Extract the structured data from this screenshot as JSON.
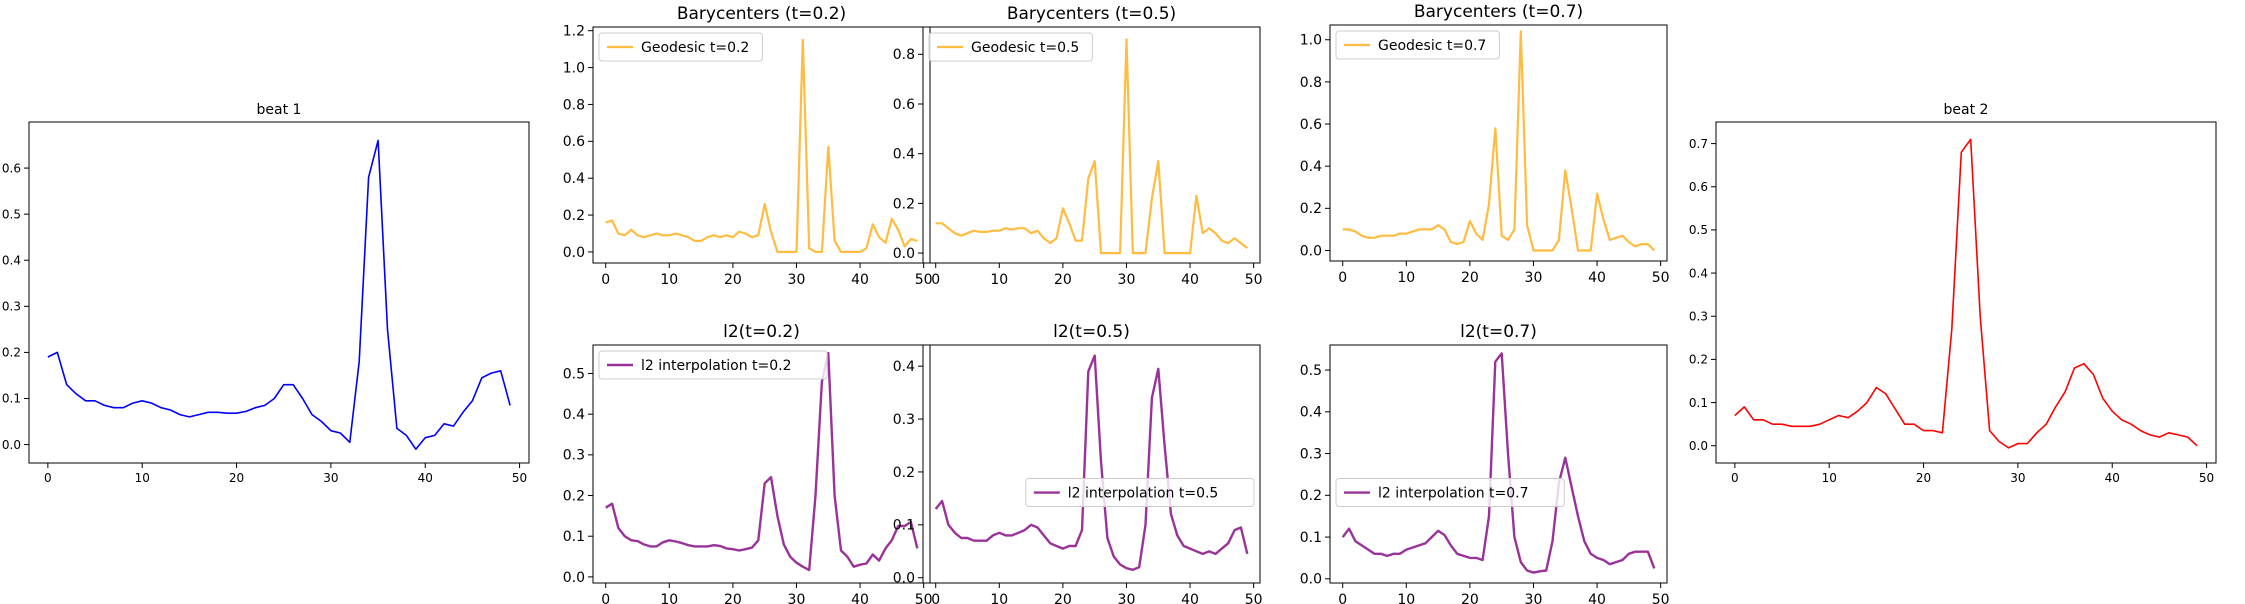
{
  "chart_data": [
    {
      "id": "beat1",
      "type": "line",
      "title": "beat 1",
      "xlabel": "",
      "ylabel": "",
      "xlim": [
        -2,
        51
      ],
      "ylim": [
        -0.04,
        0.7
      ],
      "xticks": [
        0,
        10,
        20,
        30,
        40,
        50
      ],
      "yticks": [
        0.0,
        0.1,
        0.2,
        0.3,
        0.4,
        0.5,
        0.6
      ],
      "tick_labels_y": [
        "0.0",
        "0.1",
        "0.2",
        "0.3",
        "0.4",
        "0.5",
        "0.6"
      ],
      "legend": null,
      "series": [
        {
          "name": "beat 1",
          "color": "#0000ff",
          "values": [
            0.19,
            0.2,
            0.13,
            0.11,
            0.095,
            0.095,
            0.085,
            0.08,
            0.08,
            0.09,
            0.095,
            0.09,
            0.08,
            0.075,
            0.065,
            0.06,
            0.065,
            0.07,
            0.07,
            0.068,
            0.068,
            0.072,
            0.08,
            0.085,
            0.1,
            0.13,
            0.13,
            0.1,
            0.065,
            0.05,
            0.03,
            0.025,
            0.005,
            0.18,
            0.58,
            0.66,
            0.25,
            0.035,
            0.02,
            -0.01,
            0.015,
            0.02,
            0.045,
            0.04,
            0.07,
            0.095,
            0.145,
            0.155,
            0.16,
            0.085
          ]
        }
      ]
    },
    {
      "id": "bary02",
      "type": "line",
      "title": "Barycenters (t=0.2)",
      "xlim": [
        -2,
        51
      ],
      "ylim": [
        -0.06,
        1.22
      ],
      "xticks": [
        0,
        10,
        20,
        30,
        40,
        50
      ],
      "yticks": [
        0.0,
        0.2,
        0.4,
        0.6,
        0.8,
        1.0,
        1.2
      ],
      "tick_labels_y": [
        "0.0",
        "0.2",
        "0.4",
        "0.6",
        "0.8",
        "1.0",
        "1.2"
      ],
      "legend": "top-left",
      "series": [
        {
          "name": "Geodesic t=0.2",
          "color": "#ffa500",
          "values": [
            0.16,
            0.17,
            0.1,
            0.09,
            0.12,
            0.09,
            0.08,
            0.09,
            0.1,
            0.09,
            0.09,
            0.1,
            0.09,
            0.08,
            0.06,
            0.06,
            0.08,
            0.09,
            0.08,
            0.09,
            0.08,
            0.11,
            0.1,
            0.08,
            0.09,
            0.26,
            0.11,
            0.0,
            0.0,
            0.0,
            0.0,
            1.15,
            0.02,
            0.0,
            0.0,
            0.57,
            0.06,
            0.0,
            0.0,
            0.0,
            0.0,
            0.02,
            0.15,
            0.08,
            0.05,
            0.18,
            0.12,
            0.03,
            0.07,
            0.06
          ]
        }
      ]
    },
    {
      "id": "bary05",
      "type": "line",
      "title": "Barycenters (t=0.5)",
      "xlim": [
        -2,
        51
      ],
      "ylim": [
        -0.04,
        0.91
      ],
      "xticks": [
        0,
        10,
        20,
        30,
        40,
        50
      ],
      "yticks": [
        0.0,
        0.2,
        0.4,
        0.6,
        0.8
      ],
      "tick_labels_y": [
        "0.0",
        "0.2",
        "0.4",
        "0.6",
        "0.8"
      ],
      "legend": "top-left",
      "series": [
        {
          "name": "Geodesic t=0.5",
          "color": "#ffa500",
          "values": [
            0.12,
            0.12,
            0.1,
            0.08,
            0.07,
            0.08,
            0.09,
            0.085,
            0.085,
            0.09,
            0.09,
            0.1,
            0.095,
            0.1,
            0.1,
            0.08,
            0.09,
            0.06,
            0.04,
            0.06,
            0.18,
            0.12,
            0.05,
            0.05,
            0.3,
            0.37,
            0.0,
            0.0,
            0.0,
            0.0,
            0.86,
            0.0,
            0.0,
            0.0,
            0.22,
            0.37,
            0.0,
            0.0,
            0.0,
            0.0,
            0.0,
            0.23,
            0.08,
            0.1,
            0.08,
            0.05,
            0.04,
            0.06,
            0.04,
            0.02
          ]
        }
      ]
    },
    {
      "id": "bary07",
      "type": "line",
      "title": "Barycenters (t=0.7)",
      "xlim": [
        -2,
        51
      ],
      "ylim": [
        -0.05,
        1.07
      ],
      "xticks": [
        0,
        10,
        20,
        30,
        40,
        50
      ],
      "yticks": [
        0.0,
        0.2,
        0.4,
        0.6,
        0.8,
        1.0
      ],
      "tick_labels_y": [
        "0.0",
        "0.2",
        "0.4",
        "0.6",
        "0.8",
        "1.0"
      ],
      "legend": "top-left",
      "series": [
        {
          "name": "Geodesic t=0.7",
          "color": "#ffa500",
          "values": [
            0.1,
            0.1,
            0.09,
            0.07,
            0.06,
            0.06,
            0.07,
            0.07,
            0.07,
            0.08,
            0.08,
            0.09,
            0.1,
            0.1,
            0.1,
            0.12,
            0.1,
            0.04,
            0.03,
            0.04,
            0.14,
            0.08,
            0.05,
            0.22,
            0.58,
            0.07,
            0.05,
            0.1,
            1.04,
            0.12,
            0.0,
            0.0,
            0.0,
            0.0,
            0.05,
            0.38,
            0.2,
            0.0,
            0.0,
            0.0,
            0.27,
            0.15,
            0.05,
            0.06,
            0.07,
            0.04,
            0.02,
            0.03,
            0.03,
            0.0
          ]
        }
      ]
    },
    {
      "id": "l2_02",
      "type": "line",
      "title": "l2(t=0.2)",
      "xlim": [
        -2,
        51
      ],
      "ylim": [
        -0.015,
        0.57
      ],
      "xticks": [
        0,
        10,
        20,
        30,
        40,
        50
      ],
      "yticks": [
        0.0,
        0.1,
        0.2,
        0.3,
        0.4,
        0.5
      ],
      "tick_labels_y": [
        "0.0",
        "0.1",
        "0.2",
        "0.3",
        "0.4",
        "0.5"
      ],
      "legend": "top-left",
      "series": [
        {
          "name": "l2 interpolation t=0.2",
          "color": "#800080",
          "values": [
            0.17,
            0.18,
            0.12,
            0.1,
            0.09,
            0.088,
            0.08,
            0.075,
            0.075,
            0.085,
            0.09,
            0.087,
            0.083,
            0.078,
            0.075,
            0.075,
            0.075,
            0.078,
            0.076,
            0.07,
            0.068,
            0.065,
            0.068,
            0.072,
            0.09,
            0.23,
            0.245,
            0.15,
            0.08,
            0.05,
            0.035,
            0.025,
            0.017,
            0.2,
            0.48,
            0.55,
            0.2,
            0.065,
            0.05,
            0.025,
            0.03,
            0.033,
            0.055,
            0.04,
            0.07,
            0.09,
            0.125,
            0.125,
            0.135,
            0.07
          ]
        }
      ]
    },
    {
      "id": "l2_05",
      "type": "line",
      "title": "l2(t=0.5)",
      "xlim": [
        -2,
        51
      ],
      "ylim": [
        -0.01,
        0.44
      ],
      "xticks": [
        0,
        10,
        20,
        30,
        40,
        50
      ],
      "yticks": [
        0.0,
        0.1,
        0.2,
        0.3,
        0.4
      ],
      "tick_labels_y": [
        "0.0",
        "0.1",
        "0.2",
        "0.3",
        "0.4"
      ],
      "legend": "center-right",
      "series": [
        {
          "name": "l2 interpolation t=0.5",
          "color": "#800080",
          "values": [
            0.13,
            0.145,
            0.1,
            0.085,
            0.075,
            0.075,
            0.07,
            0.07,
            0.07,
            0.08,
            0.085,
            0.08,
            0.08,
            0.085,
            0.09,
            0.1,
            0.095,
            0.08,
            0.065,
            0.06,
            0.055,
            0.06,
            0.06,
            0.09,
            0.39,
            0.42,
            0.22,
            0.075,
            0.04,
            0.025,
            0.018,
            0.015,
            0.02,
            0.1,
            0.34,
            0.395,
            0.25,
            0.12,
            0.08,
            0.06,
            0.055,
            0.05,
            0.045,
            0.05,
            0.045,
            0.055,
            0.065,
            0.09,
            0.095,
            0.045
          ]
        }
      ]
    },
    {
      "id": "l2_07",
      "type": "line",
      "title": "l2(t=0.7)",
      "xlim": [
        -2,
        51
      ],
      "ylim": [
        -0.01,
        0.56
      ],
      "xticks": [
        0,
        10,
        20,
        30,
        40,
        50
      ],
      "yticks": [
        0.0,
        0.1,
        0.2,
        0.3,
        0.4,
        0.5
      ],
      "tick_labels_y": [
        "0.0",
        "0.1",
        "0.2",
        "0.3",
        "0.4",
        "0.5"
      ],
      "legend": "center-left",
      "series": [
        {
          "name": "l2 interpolation t=0.7",
          "color": "#800080",
          "values": [
            0.1,
            0.12,
            0.09,
            0.08,
            0.07,
            0.06,
            0.06,
            0.055,
            0.06,
            0.06,
            0.07,
            0.075,
            0.08,
            0.085,
            0.1,
            0.115,
            0.105,
            0.08,
            0.06,
            0.055,
            0.05,
            0.05,
            0.045,
            0.15,
            0.52,
            0.54,
            0.3,
            0.1,
            0.04,
            0.02,
            0.015,
            0.018,
            0.02,
            0.09,
            0.23,
            0.29,
            0.22,
            0.15,
            0.09,
            0.06,
            0.05,
            0.045,
            0.035,
            0.04,
            0.045,
            0.06,
            0.065,
            0.065,
            0.065,
            0.025
          ]
        }
      ]
    },
    {
      "id": "beat2",
      "type": "line",
      "title": "beat 2",
      "xlim": [
        -2,
        51
      ],
      "ylim": [
        -0.04,
        0.75
      ],
      "xticks": [
        0,
        10,
        20,
        30,
        40,
        50
      ],
      "yticks": [
        0.0,
        0.1,
        0.2,
        0.3,
        0.4,
        0.5,
        0.6,
        0.7
      ],
      "tick_labels_y": [
        "0.0",
        "0.1",
        "0.2",
        "0.3",
        "0.4",
        "0.5",
        "0.6",
        "0.7"
      ],
      "legend": null,
      "series": [
        {
          "name": "beat 2",
          "color": "#ff0000",
          "values": [
            0.07,
            0.09,
            0.06,
            0.06,
            0.05,
            0.05,
            0.045,
            0.045,
            0.045,
            0.05,
            0.06,
            0.07,
            0.065,
            0.08,
            0.1,
            0.135,
            0.12,
            0.085,
            0.05,
            0.05,
            0.035,
            0.035,
            0.03,
            0.27,
            0.68,
            0.71,
            0.3,
            0.035,
            0.01,
            -0.005,
            0.005,
            0.005,
            0.03,
            0.05,
            0.09,
            0.125,
            0.18,
            0.19,
            0.165,
            0.11,
            0.08,
            0.06,
            0.05,
            0.035,
            0.025,
            0.02,
            0.03,
            0.025,
            0.02,
            0.0
          ]
        }
      ]
    }
  ]
}
